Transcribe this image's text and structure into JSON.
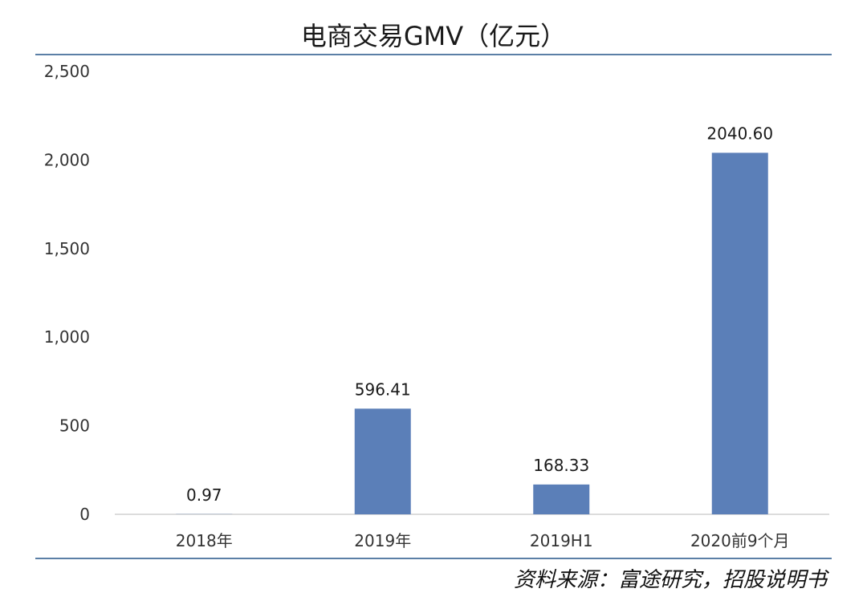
{
  "chart_data": {
    "type": "bar",
    "title": "电商交易GMV（亿元）",
    "xlabel": "",
    "ylabel": "",
    "categories": [
      "2018年",
      "2019年",
      "2019H1",
      "2020前9个月"
    ],
    "values": [
      0.97,
      596.41,
      168.33,
      2040.6
    ],
    "value_labels": [
      "0.97",
      "596.41",
      "168.33",
      "2040.60"
    ],
    "ylim": [
      0,
      2500
    ],
    "yticks": [
      0,
      500,
      1000,
      1500,
      2000,
      2500
    ],
    "ytick_labels": [
      "0",
      "500",
      "1,000",
      "1,500",
      "2,000",
      "2,500"
    ],
    "bar_color": "#5b7fb8",
    "grid": false,
    "legend": "none"
  },
  "source": "资料来源：富途研究，招股说明书"
}
